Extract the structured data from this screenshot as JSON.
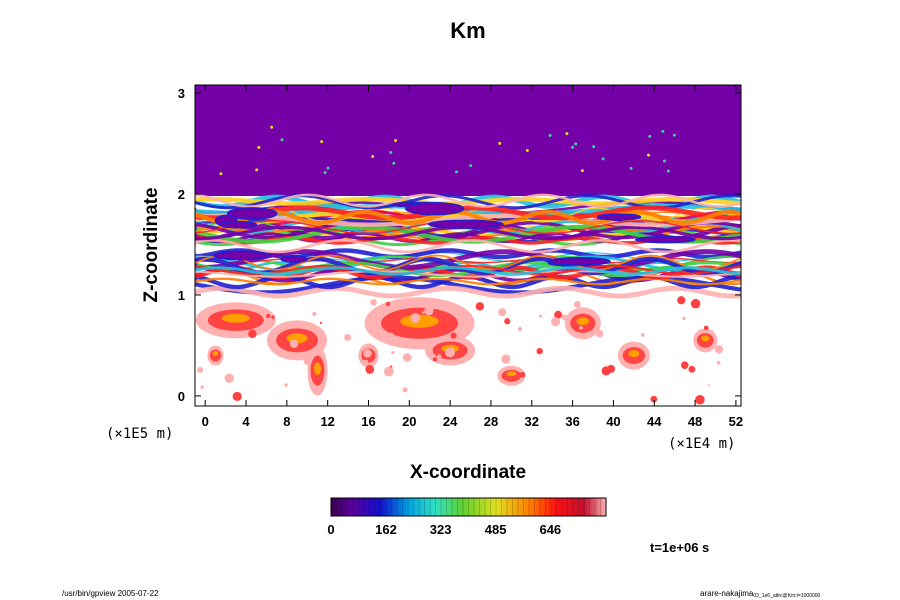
{
  "chart_data": {
    "type": "heatmap",
    "title": "Km",
    "xlabel": "X-coordinate",
    "ylabel": "Z-coordinate",
    "x_scale_note": "(×1E4 m)",
    "y_scale_note": "(×1E5 m)",
    "xlim": [
      -1,
      52.5
    ],
    "ylim": [
      -0.1,
      3.08
    ],
    "x_ticks": [
      0,
      4,
      8,
      12,
      16,
      20,
      24,
      28,
      32,
      36,
      40,
      44,
      48,
      52
    ],
    "y_ticks": [
      0,
      1,
      2,
      3
    ],
    "colorbar": {
      "ticks": [
        0,
        162,
        323,
        485,
        646
      ],
      "range": [
        0,
        810
      ],
      "colormap": "rainbow-purple-to-red-to-pink"
    },
    "colors": {
      "top_layer": "#7400a8",
      "background": "#ffffff"
    },
    "regions": [
      {
        "name": "upper-stable-layer",
        "z_range": [
          1.95,
          3.08
        ],
        "value_level": "minimum"
      },
      {
        "name": "turbulent-band",
        "z_range": [
          1.0,
          1.95
        ],
        "value_level": "mixed"
      },
      {
        "name": "lower-plumes",
        "z_range": [
          -0.1,
          1.0
        ],
        "value_level": "high-sparse"
      }
    ]
  },
  "time_label": "t=1e+06 s",
  "footer": {
    "left": "/usr/bin/gpview 2005-07-22",
    "right": "arare-nakajima",
    "right_sub": "03_1e6_attrc@Km;t=1000000"
  }
}
